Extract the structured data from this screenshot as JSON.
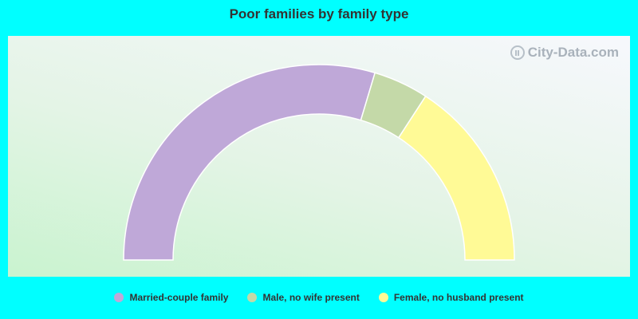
{
  "chart_data": {
    "type": "pie",
    "subtype": "semi-donut",
    "title": "Poor families by family type",
    "categories": [
      "Married-couple family",
      "Male, no wife present",
      "Female, no husband present"
    ],
    "values": [
      47.4,
      7.3,
      25.3
    ],
    "colors": [
      "#bfa8d8",
      "#c4d9a8",
      "#fffa96"
    ],
    "legend_position": "bottom"
  },
  "watermark": {
    "text": "City-Data.com",
    "icon": "magnifier-chart-icon"
  }
}
